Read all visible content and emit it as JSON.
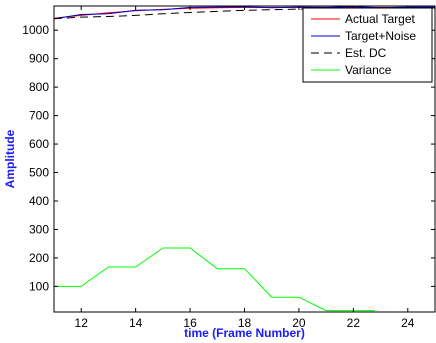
{
  "chart_data": {
    "type": "line",
    "title": "",
    "xlabel": "time (Frame Number)",
    "ylabel": "Amplitude",
    "xlim": [
      11,
      25
    ],
    "ylim": [
      10,
      1085
    ],
    "xticks": [
      12,
      14,
      16,
      18,
      20,
      22,
      24
    ],
    "yticks": [
      100,
      200,
      300,
      400,
      500,
      600,
      700,
      800,
      900,
      1000
    ],
    "grid": false,
    "legend_position": "top-right",
    "label_color": "#1a1aff",
    "series": [
      {
        "name": "Actual Target",
        "color": "#ff0000",
        "style": "solid",
        "x": [
          11,
          12,
          13,
          14,
          15,
          16,
          17,
          18,
          19,
          20,
          21,
          22,
          23,
          24,
          25
        ],
        "y": [
          1042,
          1052,
          1061,
          1068,
          1073,
          1077,
          1079,
          1080,
          1080,
          1080,
          1080,
          1080,
          1080,
          1080,
          1080
        ]
      },
      {
        "name": "Target+Noise",
        "color": "#0000cc",
        "style": "solid",
        "x": [
          11,
          12,
          13,
          14,
          15,
          16,
          17,
          18,
          19,
          20,
          21,
          22,
          23,
          24,
          25
        ],
        "y": [
          1040,
          1055,
          1058,
          1070,
          1072,
          1080,
          1081,
          1082,
          1079,
          1081,
          1080,
          1083,
          1079,
          1081,
          1081
        ]
      },
      {
        "name": "Est. DC",
        "color": "#000000",
        "style": "dashed",
        "x": [
          11,
          12,
          13,
          14,
          15,
          16,
          17,
          18,
          19,
          20,
          21,
          22,
          23,
          24,
          25
        ],
        "y": [
          1040,
          1046,
          1048,
          1052,
          1058,
          1062,
          1066,
          1070,
          1072,
          1074,
          1075,
          1076,
          1077,
          1078,
          1078
        ]
      },
      {
        "name": "Variance",
        "color": "#00ff00",
        "style": "solid",
        "x": [
          11,
          12,
          13,
          14,
          15,
          16,
          17,
          18,
          19,
          20,
          21,
          22,
          22.8
        ],
        "y": [
          100,
          100,
          168,
          168,
          235,
          235,
          162,
          162,
          62,
          62,
          15,
          15,
          15
        ]
      }
    ]
  }
}
